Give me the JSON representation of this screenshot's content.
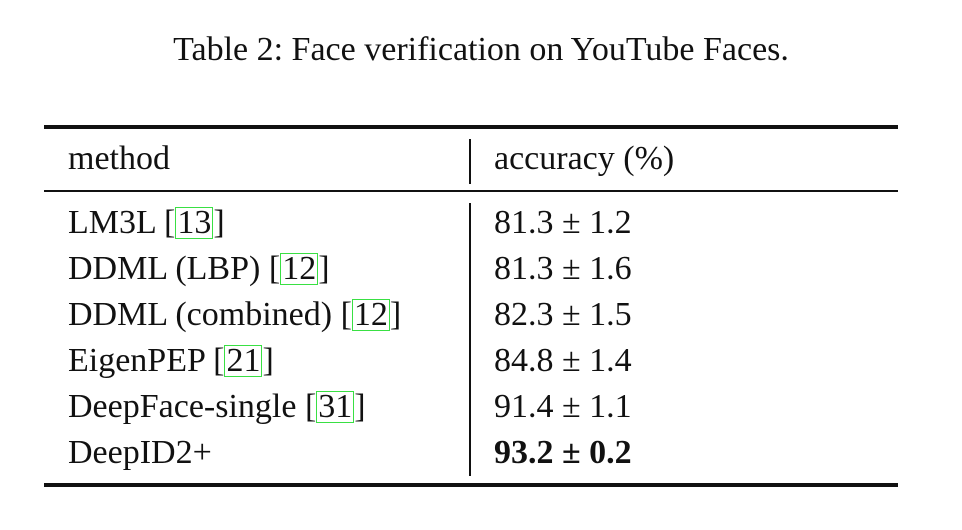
{
  "caption": "Table 2: Face verification on YouTube Faces.",
  "table": {
    "headers": {
      "method": "method",
      "accuracy": "accuracy (%)"
    },
    "rows": [
      {
        "method": "LM3L",
        "ref": "13",
        "accuracy": "81.3 ± 1.2"
      },
      {
        "method": "DDML (LBP)",
        "ref": "12",
        "accuracy": "81.3 ± 1.6"
      },
      {
        "method": "DDML (combined)",
        "ref": "12",
        "accuracy": "82.3 ± 1.5"
      },
      {
        "method": "EigenPEP",
        "ref": "21",
        "accuracy": "84.8 ± 1.4"
      },
      {
        "method": "DeepFace-single",
        "ref": "31",
        "accuracy": "91.4 ± 1.1"
      },
      {
        "method": "DeepID2+",
        "ref": "",
        "accuracy": "93.2 ± 0.2",
        "best": true
      }
    ]
  },
  "colors": {
    "citation_box": "#39e043",
    "text": "#111111"
  }
}
